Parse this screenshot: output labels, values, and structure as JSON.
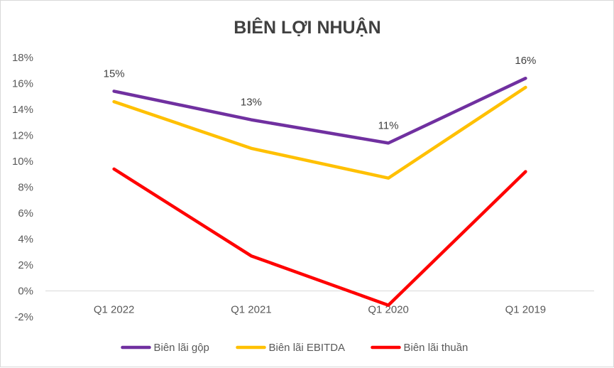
{
  "chart_data": {
    "type": "line",
    "title": "BIÊN LỢI NHUẬN",
    "categories": [
      "Q1 2022",
      "Q1 2021",
      "Q1 2020",
      "Q1 2019"
    ],
    "ylim": [
      -0.02,
      0.18
    ],
    "ytick_step": 0.02,
    "yticks": [
      "-2%",
      "0%",
      "2%",
      "4%",
      "6%",
      "8%",
      "10%",
      "12%",
      "14%",
      "16%",
      "18%"
    ],
    "grid": false,
    "legend_position": "bottom",
    "series": [
      {
        "name": "Biên lãi gộp",
        "color": "#7030a0",
        "values": [
          0.154,
          0.132,
          0.114,
          0.164
        ],
        "data_labels": [
          "15%",
          "13%",
          "11%",
          "16%"
        ]
      },
      {
        "name": "Biên lãi EBITDA",
        "color": "#ffc000",
        "values": [
          0.146,
          0.11,
          0.087,
          0.157
        ]
      },
      {
        "name": "Biên lãi thuần",
        "color": "#ff0000",
        "values": [
          0.094,
          0.027,
          -0.011,
          0.092
        ]
      }
    ]
  }
}
